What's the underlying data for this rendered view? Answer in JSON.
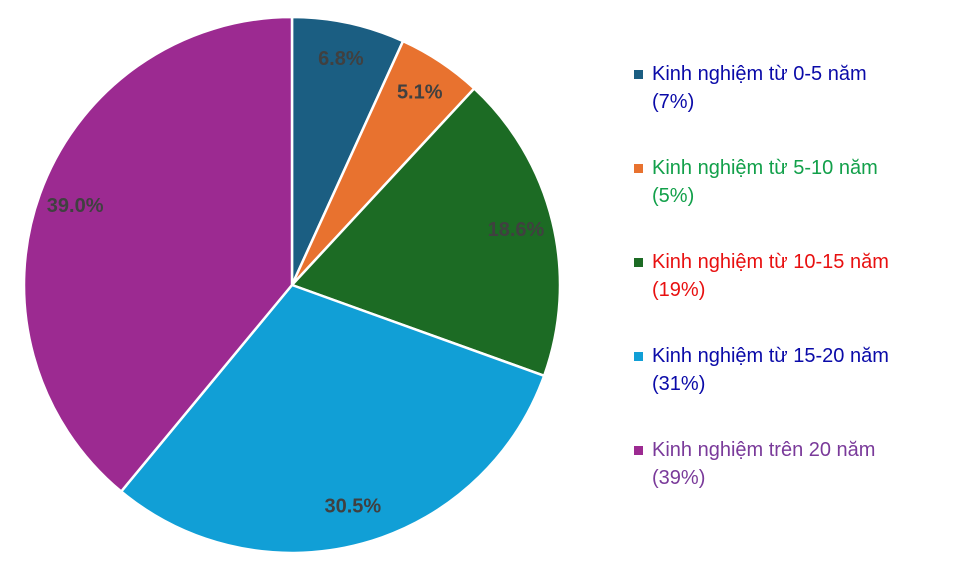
{
  "chart_data": {
    "type": "pie",
    "categories": [
      "Kinh nghiệm từ 0-5 năm",
      "Kinh nghiệm từ 5-10 năm",
      "Kinh nghiệm từ 10-15 năm",
      "Kinh nghiệm từ 15-20 năm",
      "Kinh nghiệm trên 20 năm"
    ],
    "legend_shares": [
      "(7%)",
      "(5%)",
      "(19%)",
      "(31%)",
      "(39%)"
    ],
    "values": [
      6.8,
      5.1,
      18.6,
      30.5,
      39.0
    ],
    "value_labels": [
      "6.8%",
      "5.1%",
      "18.6%",
      "30.5%",
      "39.0%"
    ],
    "colors": [
      "#1b5e82",
      "#e8722f",
      "#1c6b24",
      "#119fd6",
      "#9c2a91"
    ],
    "legend_text_colors": [
      "#0a0aa8",
      "#12a04a",
      "#e81010",
      "#0a0aa8",
      "#7a3a9a"
    ]
  }
}
